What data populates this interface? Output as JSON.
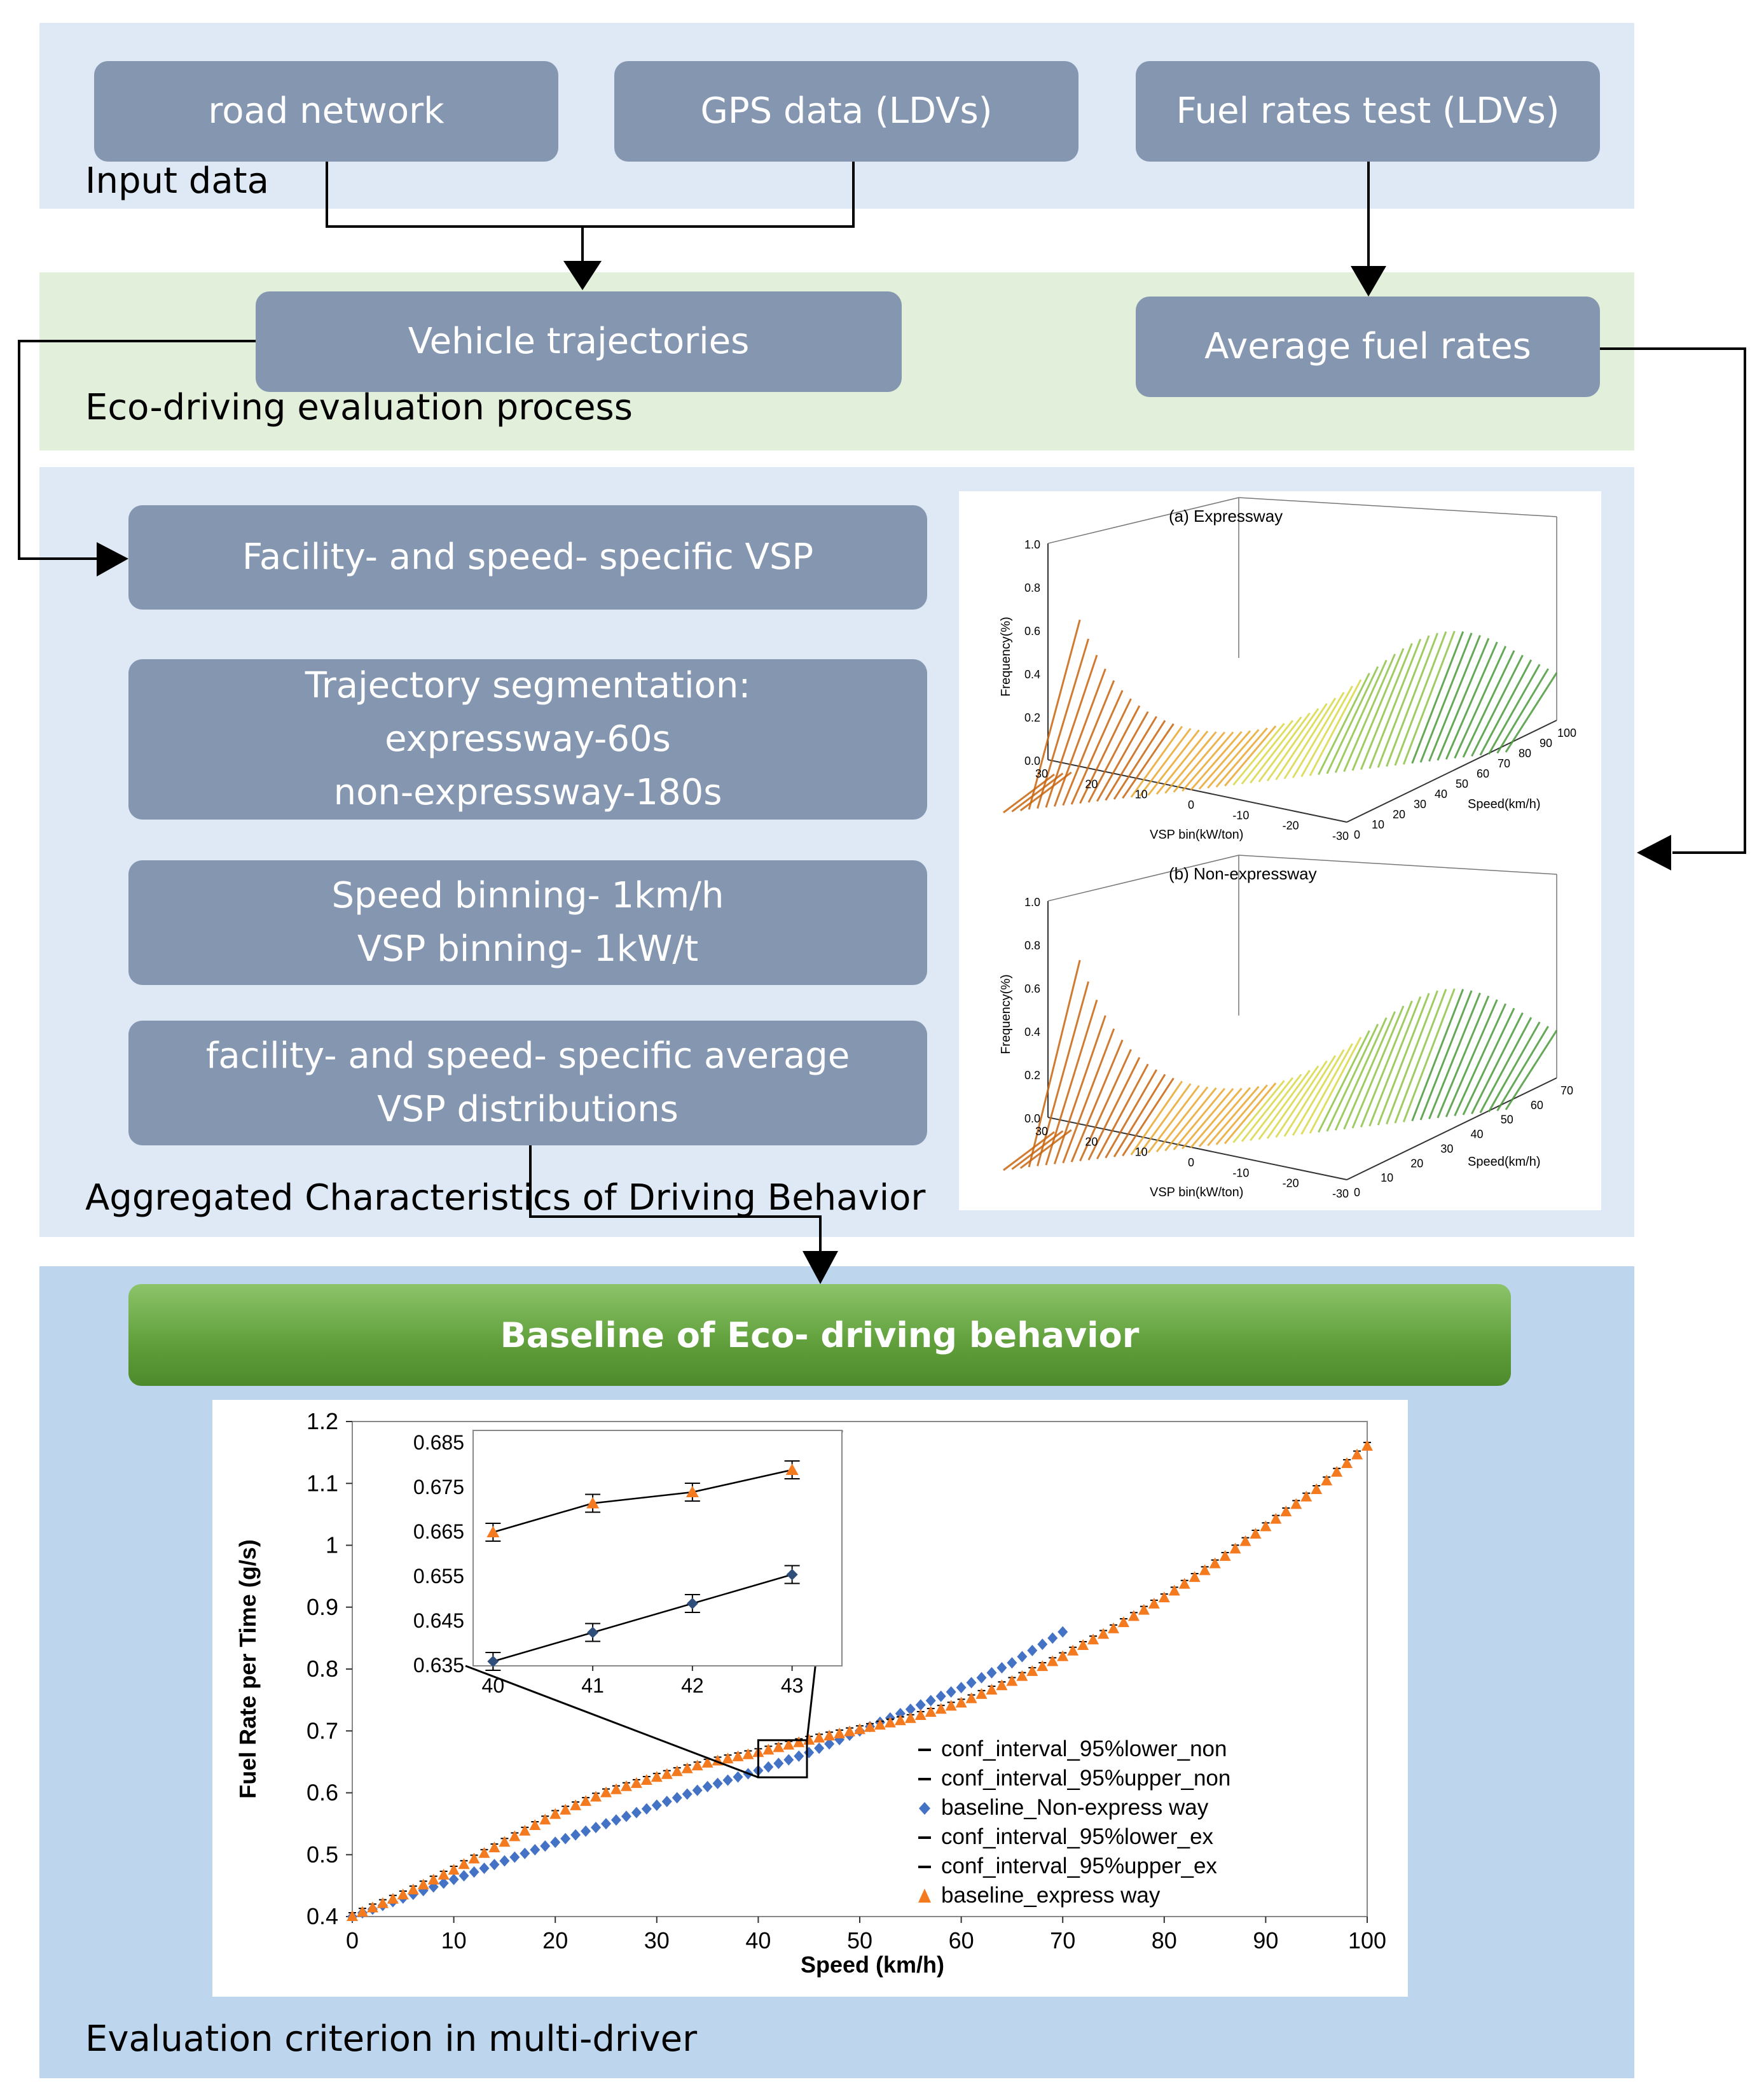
{
  "colors": {
    "panel_blue_light": "#dee9f5",
    "panel_green": "#e2efda",
    "panel_blue_dark": "#bdd6ee",
    "box": "#8496b0",
    "baseline_green": "#70ad47",
    "series_orange": "#f47a20",
    "series_blue": "#4472c4"
  },
  "panels": {
    "input": {
      "label": "Input data",
      "boxes": [
        "road network",
        "GPS data (LDVs)",
        "Fuel rates test (LDVs)"
      ]
    },
    "eco": {
      "label": "Eco-driving evaluation process",
      "boxes": [
        "Vehicle trajectories",
        "Average fuel rates"
      ]
    },
    "aggregated": {
      "label": "Aggregated Characteristics of Driving Behavior",
      "boxes": [
        [
          "Facility- and speed- specific VSP"
        ],
        [
          "Trajectory segmentation:",
          "expressway-60s",
          "non-expressway-180s"
        ],
        [
          "Speed binning- 1km/h",
          "VSP binning- 1kW/t"
        ],
        [
          "facility- and speed- specific average",
          "VSP distributions"
        ]
      ]
    },
    "evaluation": {
      "label": "Evaluation criterion in multi-driver",
      "baseline_title": "Baseline of Eco- driving behavior"
    }
  },
  "surface_plots": [
    {
      "title": "(a) Expressway",
      "zlabel": "Frequency(%)",
      "z_ticks": [
        "0.0",
        "0.2",
        "0.4",
        "0.6",
        "0.8",
        "1.0"
      ],
      "xlabel": "Speed(km/h)",
      "x_ticks": [
        "0",
        "10",
        "20",
        "30",
        "40",
        "50",
        "60",
        "70",
        "80",
        "90",
        "100"
      ],
      "ylabel": "VSP bin(kW/ton)",
      "y_ticks": [
        "30",
        "20",
        "10",
        "0",
        "-10",
        "-20",
        "-30"
      ]
    },
    {
      "title": "(b) Non-expressway",
      "zlabel": "Frequency(%)",
      "z_ticks": [
        "0.0",
        "0.2",
        "0.4",
        "0.6",
        "0.8",
        "1.0"
      ],
      "xlabel": "Speed(km/h)",
      "x_ticks": [
        "0",
        "10",
        "20",
        "30",
        "40",
        "50",
        "60",
        "70"
      ],
      "ylabel": "VSP bin(kW/ton)",
      "y_ticks": [
        "30",
        "20",
        "10",
        "0",
        "-10",
        "-20",
        "-30"
      ]
    }
  ],
  "chart_data": {
    "type": "scatter",
    "xlabel": "Speed (km/h)",
    "ylabel": "Fuel Rate per Time (g/s)",
    "xlim": [
      0,
      100
    ],
    "ylim": [
      0.4,
      1.2
    ],
    "x_ticks": [
      0,
      10,
      20,
      30,
      40,
      50,
      60,
      70,
      80,
      90,
      100
    ],
    "y_ticks": [
      "0.4",
      "0.5",
      "0.6",
      "0.7",
      "0.8",
      "0.9",
      "1",
      "1.1",
      "1.2"
    ],
    "legend": [
      {
        "name": "conf_interval_95%lower_non",
        "marker": "dash"
      },
      {
        "name": "conf_interval_95%upper_non",
        "marker": "dash"
      },
      {
        "name": "baseline_Non-express way",
        "marker": "diamond"
      },
      {
        "name": "conf_interval_95%lower_ex",
        "marker": "dash"
      },
      {
        "name": "conf_interval_95%upper_ex",
        "marker": "dash"
      },
      {
        "name": "baseline_express way",
        "marker": "triangle"
      }
    ],
    "series": [
      {
        "name": "baseline_Non-express way",
        "x": [
          0,
          5,
          10,
          15,
          20,
          25,
          30,
          35,
          40,
          45,
          50,
          55,
          60,
          65,
          70
        ],
        "values": [
          0.4,
          0.43,
          0.46,
          0.49,
          0.52,
          0.55,
          0.58,
          0.61,
          0.636,
          0.665,
          0.7,
          0.735,
          0.77,
          0.81,
          0.86
        ]
      },
      {
        "name": "baseline_express way",
        "x": [
          0,
          5,
          10,
          15,
          20,
          25,
          30,
          35,
          40,
          45,
          50,
          55,
          60,
          65,
          70,
          75,
          80,
          85,
          90,
          95,
          100
        ],
        "values": [
          0.4,
          0.435,
          0.475,
          0.52,
          0.565,
          0.6,
          0.625,
          0.648,
          0.665,
          0.685,
          0.702,
          0.72,
          0.745,
          0.78,
          0.82,
          0.865,
          0.915,
          0.97,
          1.03,
          1.09,
          1.16
        ]
      }
    ],
    "inset": {
      "xlim": [
        40,
        43
      ],
      "ylim": [
        0.635,
        0.685
      ],
      "x_ticks": [
        40,
        41,
        42,
        43
      ],
      "y_ticks": [
        "0.635",
        "0.645",
        "0.655",
        "0.665",
        "0.675",
        "0.685"
      ],
      "series": [
        {
          "name": "baseline_express way",
          "x": [
            40,
            41,
            42,
            43
          ],
          "values": [
            0.665,
            0.6715,
            0.674,
            0.679
          ]
        },
        {
          "name": "baseline_Non-express way",
          "x": [
            40,
            41,
            42,
            43
          ],
          "values": [
            0.636,
            0.6425,
            0.649,
            0.6555
          ]
        }
      ]
    }
  }
}
